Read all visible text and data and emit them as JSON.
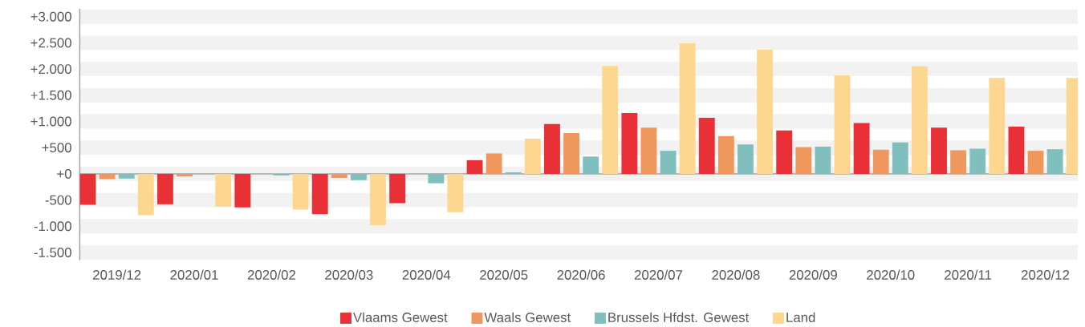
{
  "chart_data": {
    "type": "bar",
    "categories": [
      "2019/12",
      "2020/01",
      "2020/02",
      "2020/03",
      "2020/04",
      "2020/05",
      "2020/06",
      "2020/07",
      "2020/08",
      "2020/09",
      "2020/10",
      "2020/11",
      "2020/12"
    ],
    "series": [
      {
        "name": "Vlaams Gewest",
        "color": "#e83036",
        "values": [
          -590,
          -580,
          -640,
          -770,
          -560,
          260,
          950,
          1160,
          1070,
          830,
          970,
          880,
          900
        ]
      },
      {
        "name": "Waals Gewest",
        "color": "#f0975e",
        "values": [
          -100,
          -50,
          null,
          -80,
          null,
          390,
          780,
          880,
          720,
          510,
          460,
          450,
          440
        ]
      },
      {
        "name": "Brussels Hfdst. Gewest",
        "color": "#80bfbe",
        "values": [
          -90,
          null,
          -30,
          -120,
          -180,
          30,
          330,
          440,
          560,
          520,
          600,
          480,
          470
        ]
      },
      {
        "name": "Land",
        "color": "#fdd78f",
        "values": [
          -790,
          -630,
          -680,
          -980,
          -730,
          670,
          2060,
          2490,
          2370,
          1880,
          2050,
          1830,
          1830
        ]
      }
    ],
    "ylim": [
      -1650,
      3150
    ],
    "yticks": [
      {
        "value": 3000,
        "label": "+3.000"
      },
      {
        "value": 2500,
        "label": "+2.500"
      },
      {
        "value": 2000,
        "label": "+2.000"
      },
      {
        "value": 1500,
        "label": "+1.500"
      },
      {
        "value": 1000,
        "label": "+1.000"
      },
      {
        "value": 500,
        "label": "+500"
      },
      {
        "value": 0,
        "label": "+0"
      },
      {
        "value": -500,
        "label": "-500"
      },
      {
        "value": -1000,
        "label": "-1.000"
      },
      {
        "value": -1500,
        "label": "-1.500"
      }
    ],
    "grid": "y",
    "legend": "bottom"
  }
}
